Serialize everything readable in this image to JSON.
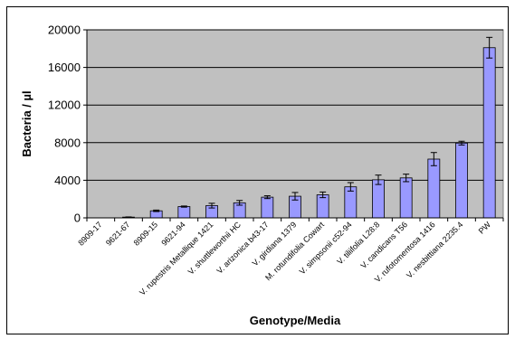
{
  "chart_data": {
    "type": "bar",
    "title": "",
    "xlabel": "Genotype/Media",
    "ylabel": "Bacteria / µl",
    "ylim": [
      0,
      20000
    ],
    "yticks": [
      0,
      4000,
      8000,
      12000,
      16000,
      20000
    ],
    "ytick_labels": [
      "0",
      "4000",
      "8000",
      "12000",
      "16000",
      "20000"
    ],
    "grid": "horizontal",
    "legend": "none",
    "plot_background": "#c0c0c0",
    "bar_color": "#9999ff",
    "categories": [
      "8909-17",
      "9621-67",
      "8909-15",
      "9621-94",
      "V. rupestris Metallique 1421",
      "V. shuttleworthii HC",
      "V. arizonica b43-17",
      "V. girdiana 1379",
      "M. rotundifolia Cowart",
      "V. simpsonii c52-94",
      "V. tiliifolia L28:8",
      "V. candicans T56",
      "V. rufotomentosa 1416",
      "V. nesbittiana 2235.4",
      "PW"
    ],
    "values": [
      0,
      80,
      750,
      1200,
      1300,
      1600,
      2200,
      2300,
      2450,
      3300,
      4050,
      4250,
      6250,
      7950,
      18100
    ],
    "errors": [
      0,
      20,
      80,
      60,
      250,
      250,
      150,
      400,
      300,
      450,
      500,
      400,
      700,
      200,
      1100
    ]
  }
}
